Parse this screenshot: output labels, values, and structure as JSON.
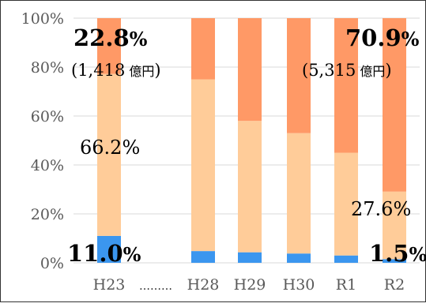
{
  "chart_data": {
    "type": "bar",
    "stacked": true,
    "categories": [
      "H23",
      "H28",
      "H29",
      "H30",
      "R1",
      "R2"
    ],
    "gap_marker": "………",
    "series": [
      {
        "values": [
          11.0,
          4.8,
          4.3,
          3.8,
          3.0,
          1.5
        ],
        "color": "#3b96ef"
      },
      {
        "values": [
          66.2,
          70.2,
          53.7,
          49.2,
          42.0,
          27.6
        ],
        "color": "#ffcc99"
      },
      {
        "values": [
          22.8,
          25.0,
          42.0,
          47.0,
          55.0,
          70.9
        ],
        "color": "#ff9966"
      }
    ],
    "y_ticks": [
      "0%",
      "20%",
      "40%",
      "60%",
      "80%",
      "100%"
    ],
    "ylim": [
      0,
      100
    ],
    "grid": true,
    "annotations": {
      "h23_top": "22.8",
      "h23_top_amount": "(1,418",
      "h23_mid": "66.2%",
      "h23_bottom": "11.0",
      "r2_top": "70.9",
      "r2_top_amount": "(5,315",
      "r2_mid": "27.6%",
      "r2_bottom": "1.5",
      "percent_sign": "%",
      "amount_unit": "億円",
      "amount_close": ")"
    }
  }
}
